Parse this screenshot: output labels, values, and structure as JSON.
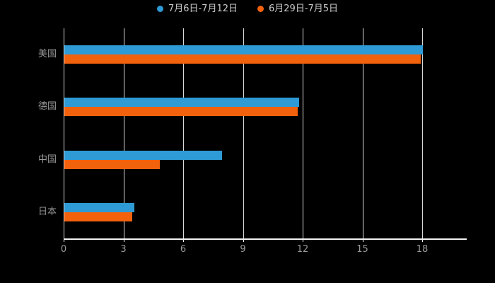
{
  "chart_data": {
    "type": "bar",
    "orientation": "horizontal",
    "title": "",
    "xlabel": "",
    "ylabel": "",
    "background": "#000000",
    "grid": true,
    "legend_position": "top",
    "categories": [
      "美国",
      "德国",
      "中国",
      "日本"
    ],
    "series": [
      {
        "name": "7月6日-7月12日",
        "color": "#2e9bd6",
        "values": [
          18,
          11.8,
          7.9,
          3.5
        ]
      },
      {
        "name": "6月29日-7月5日",
        "color": "#f2610c",
        "values": [
          17.9,
          11.7,
          4.8,
          3.4
        ]
      }
    ],
    "xlim": [
      0,
      18
    ],
    "xticks": [
      0,
      3,
      6,
      9,
      12,
      15,
      18
    ]
  }
}
